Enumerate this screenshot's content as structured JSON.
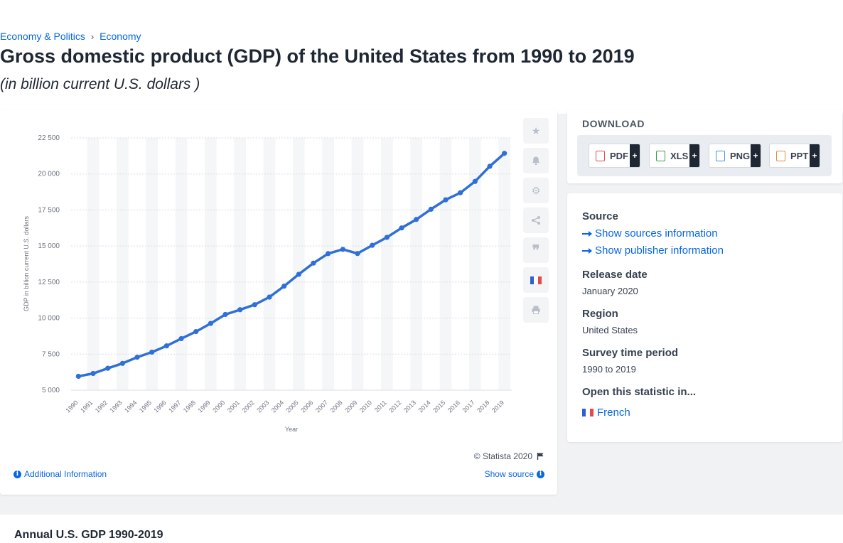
{
  "breadcrumb": [
    "Economy & Politics",
    "Economy"
  ],
  "page_title": "Gross domestic product (GDP) of the United States from 1990 to 2019",
  "page_subtitle": "(in billion current U.S. dollars )",
  "chart_data": {
    "type": "line",
    "title": "",
    "xlabel": "Year",
    "ylabel": "GDP in billion current U.S. dollars",
    "categories": [
      "1990",
      "1991",
      "1992",
      "1993",
      "1994",
      "1995",
      "1996",
      "1997",
      "1998",
      "1999",
      "2000",
      "2001",
      "2002",
      "2003",
      "2004",
      "2005",
      "2006",
      "2007",
      "2008",
      "2009",
      "2010",
      "2011",
      "2012",
      "2013",
      "2014",
      "2015",
      "2016",
      "2017",
      "2018",
      "2019"
    ],
    "series": [
      {
        "name": "",
        "values": [
          5963.1,
          6158.1,
          6520.3,
          6858.6,
          7287.2,
          7639.7,
          8073.1,
          8577.6,
          9062.8,
          9631.2,
          10251,
          10581.9,
          10929.1,
          11456.5,
          12217.2,
          13039.2,
          13815.6,
          14474.2,
          14769.9,
          14478.1,
          15049,
          15599.7,
          16254,
          16843.2,
          17550.7,
          18206.1,
          18695.1,
          19479.6,
          20527.2,
          21427.7
        ]
      }
    ],
    "yticks": [
      "5 000",
      "7 500",
      "10 000",
      "12 500",
      "15 000",
      "17 500",
      "20 000",
      "22 500"
    ],
    "ylim": [
      5000,
      22500
    ],
    "line_color": "#2f6fd8",
    "grid": true,
    "copyright": "© Statista 2020"
  },
  "toolbar": {
    "icons": [
      "star-icon",
      "bell-icon",
      "gear-icon",
      "share-icon",
      "quote-icon",
      "french-flag-icon",
      "print-icon"
    ]
  },
  "chart_footer": {
    "additional_info": "Additional Information",
    "show_source": "Show source"
  },
  "download": {
    "heading": "DOWNLOAD",
    "formats": [
      {
        "label": "PDF",
        "color": "#e34b4b"
      },
      {
        "label": "XLS",
        "color": "#3f9b4a"
      },
      {
        "label": "PNG",
        "color": "#4a90d9"
      },
      {
        "label": "PPT",
        "color": "#e8893a"
      }
    ],
    "plus": "+"
  },
  "meta": {
    "source_label": "Source",
    "show_sources": "Show sources information",
    "show_publisher": "Show publisher information",
    "release_label": "Release date",
    "release_value": "January 2020",
    "region_label": "Region",
    "region_value": "United States",
    "survey_label": "Survey time period",
    "survey_value": "1990 to 2019",
    "open_label": "Open this statistic in...",
    "open_link": "French"
  },
  "bottom": {
    "title": "Annual U.S. GDP 1990-2019"
  }
}
